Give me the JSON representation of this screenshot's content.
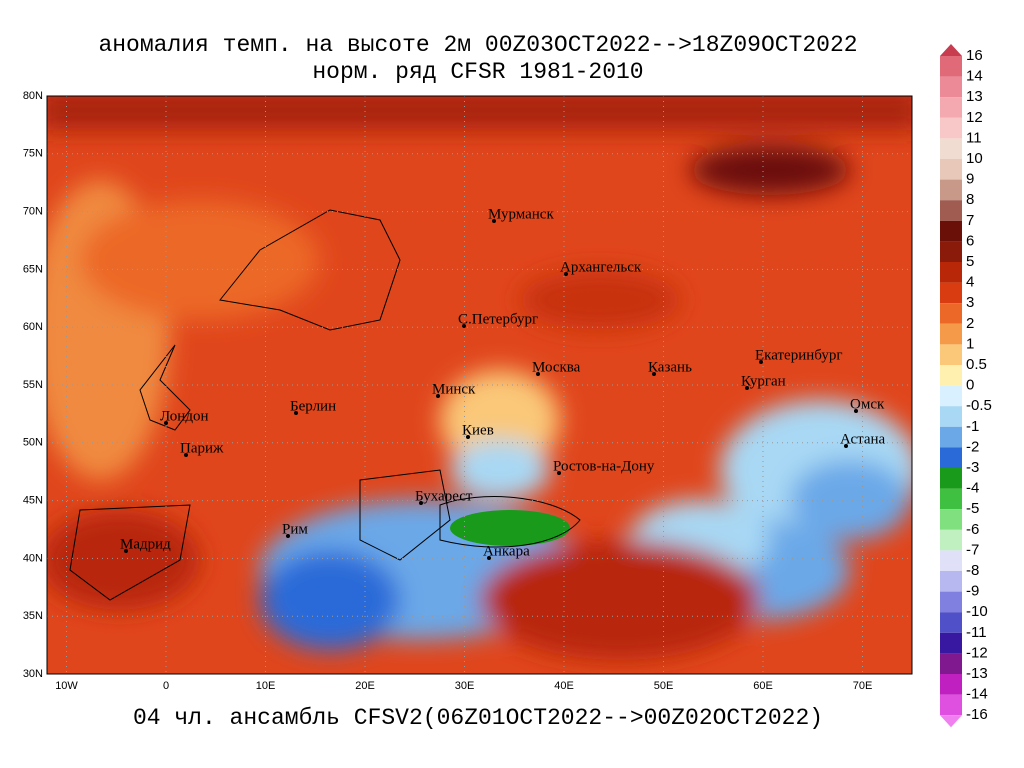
{
  "title": {
    "line1": "аномалия темп. на высоте 2м 00Z03OCT2022-->18Z09OCT2022",
    "line2": "норм. ряд CFSR 1981-2010"
  },
  "footer": "04 чл. ансамбль CFSV2(06Z01OCT2022-->00Z02OCT2022)",
  "map": {
    "lat_ticks": [
      {
        "value": 80,
        "label": "80N"
      },
      {
        "value": 75,
        "label": "75N"
      },
      {
        "value": 70,
        "label": "70N"
      },
      {
        "value": 65,
        "label": "65N"
      },
      {
        "value": 60,
        "label": "60N"
      },
      {
        "value": 55,
        "label": "55N"
      },
      {
        "value": 50,
        "label": "50N"
      },
      {
        "value": 45,
        "label": "45N"
      },
      {
        "value": 40,
        "label": "40N"
      },
      {
        "value": 35,
        "label": "35N"
      },
      {
        "value": 30,
        "label": "30N"
      }
    ],
    "lon_ticks": [
      {
        "value": -10,
        "label": "10W"
      },
      0,
      {
        "value": 10,
        "label": "10E"
      },
      {
        "value": 20,
        "label": "20E"
      },
      {
        "value": 30,
        "label": "30E"
      },
      {
        "value": 40,
        "label": "40E"
      },
      {
        "value": 50,
        "label": "50E"
      },
      {
        "value": 60,
        "label": "60E"
      },
      {
        "value": 70,
        "label": "70E"
      }
    ],
    "cities": [
      "Мурманск",
      "Архангельск",
      "С.Петербург",
      "Москва",
      "Казань",
      "Екатеринбург",
      "Курган",
      "Омск",
      "Астана",
      "Минск",
      "Берлин",
      "Лондон",
      "Париж",
      "Киев",
      "Ростов-на-Дону",
      "Бухарест",
      "Рим",
      "Мадрид",
      "Анкара"
    ]
  },
  "colorbar": {
    "levels": [
      16,
      14,
      13,
      12,
      11,
      10,
      9,
      8,
      7,
      6,
      5,
      4,
      3,
      2,
      1,
      0.5,
      0,
      -0.5,
      -1,
      -2,
      -3,
      -4,
      -5,
      -6,
      -7,
      -8,
      -9,
      -10,
      -11,
      -12,
      -13,
      -14,
      -16
    ],
    "colors": [
      "#c83c50",
      "#e06a78",
      "#ec8a98",
      "#f4a8b0",
      "#f8c8c8",
      "#f0dcd0",
      "#e8c8b8",
      "#c89888",
      "#a05c50",
      "#6a1008",
      "#8a1a0a",
      "#b82808",
      "#d83c10",
      "#ec6828",
      "#f49a48",
      "#fac878",
      "#fff0b0",
      "#d8f0ff",
      "#a8d8f4",
      "#6aa8e8",
      "#2a6ad8",
      "#1a9a1a",
      "#40c040",
      "#80e080",
      "#c0f0c0",
      "#e0e0f8",
      "#b8b8f0",
      "#8080e0",
      "#5050c8",
      "#3818a0",
      "#801890",
      "#c020c0",
      "#e050e0",
      "#f080f0"
    ]
  }
}
